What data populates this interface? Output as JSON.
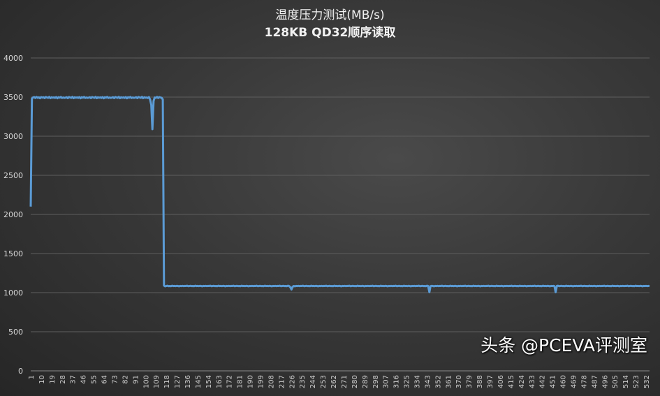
{
  "chart_data": {
    "type": "line",
    "title": "温度压力测试(MB/s)",
    "subtitle": "128KB QD32顺序读取",
    "xlabel": "",
    "ylabel": "",
    "ylim": [
      0,
      4000
    ],
    "yticks": [
      0,
      500,
      1000,
      1500,
      2000,
      2500,
      3000,
      3500,
      4000
    ],
    "xtick_start": 1,
    "xtick_step": 9,
    "grid": true,
    "color": "#5b9bd5",
    "values": [
      2100,
      3480,
      3495,
      3500,
      3488,
      3502,
      3490,
      3497,
      3485,
      3500,
      3493,
      3498,
      3487,
      3501,
      3495,
      3490,
      3503,
      3486,
      3497,
      3492,
      3496,
      3489,
      3500,
      3485,
      3498,
      3492,
      3502,
      3488,
      3495,
      3490,
      3493,
      3498,
      3487,
      3501,
      3495,
      3490,
      3503,
      3486,
      3497,
      3492,
      3496,
      3489,
      3500,
      3485,
      3498,
      3492,
      3502,
      3488,
      3495,
      3490,
      3493,
      3498,
      3487,
      3501,
      3495,
      3490,
      3503,
      3486,
      3497,
      3492,
      3496,
      3489,
      3500,
      3485,
      3498,
      3492,
      3502,
      3488,
      3495,
      3490,
      3493,
      3498,
      3487,
      3501,
      3495,
      3490,
      3503,
      3486,
      3497,
      3492,
      3496,
      3489,
      3500,
      3485,
      3498,
      3492,
      3502,
      3488,
      3495,
      3490,
      3493,
      3498,
      3487,
      3501,
      3495,
      3490,
      3503,
      3486,
      3497,
      3492,
      3495,
      3488,
      3500,
      3470,
      3400,
      3090,
      3450,
      3495,
      3490,
      3502,
      3488,
      3500,
      3495,
      3490,
      3470,
      1090,
      1080,
      1085,
      1088,
      1082,
      1085,
      1082,
      1088,
      1084,
      1086,
      1083,
      1087,
      1085,
      1081,
      1086,
      1084,
      1087,
      1083,
      1086,
      1085,
      1088,
      1082,
      1085,
      1087,
      1084,
      1085,
      1082,
      1088,
      1084,
      1086,
      1083,
      1087,
      1085,
      1081,
      1086,
      1084,
      1087,
      1083,
      1086,
      1085,
      1088,
      1082,
      1085,
      1087,
      1084,
      1085,
      1082,
      1088,
      1084,
      1086,
      1083,
      1087,
      1085,
      1081,
      1086,
      1084,
      1087,
      1083,
      1086,
      1085,
      1088,
      1082,
      1085,
      1087,
      1084,
      1085,
      1082,
      1088,
      1084,
      1086,
      1083,
      1087,
      1085,
      1081,
      1086,
      1084,
      1087,
      1083,
      1086,
      1085,
      1088,
      1082,
      1085,
      1087,
      1084,
      1085,
      1082,
      1088,
      1084,
      1086,
      1083,
      1087,
      1085,
      1081,
      1086,
      1084,
      1087,
      1083,
      1086,
      1085,
      1088,
      1082,
      1085,
      1087,
      1084,
      1085,
      1082,
      1088,
      1084,
      1070,
      1040,
      1075,
      1085,
      1081,
      1086,
      1084,
      1087,
      1083,
      1086,
      1085,
      1088,
      1082,
      1085,
      1087,
      1084,
      1085,
      1082,
      1088,
      1084,
      1086,
      1083,
      1087,
      1085,
      1081,
      1086,
      1084,
      1087,
      1083,
      1086,
      1085,
      1088,
      1082,
      1085,
      1087,
      1084,
      1085,
      1082,
      1088,
      1084,
      1086,
      1083,
      1087,
      1085,
      1081,
      1086,
      1084,
      1087,
      1083,
      1086,
      1085,
      1088,
      1082,
      1085,
      1087,
      1084,
      1085,
      1082,
      1088,
      1084,
      1086,
      1083,
      1087,
      1085,
      1081,
      1086,
      1084,
      1087,
      1083,
      1086,
      1085,
      1088,
      1082,
      1085,
      1087,
      1084,
      1085,
      1082,
      1088,
      1084,
      1086,
      1083,
      1087,
      1085,
      1081,
      1086,
      1084,
      1087,
      1083,
      1086,
      1085,
      1088,
      1082,
      1085,
      1087,
      1084,
      1085,
      1082,
      1088,
      1084,
      1086,
      1083,
      1087,
      1085,
      1081,
      1086,
      1084,
      1087,
      1083,
      1086,
      1085,
      1088,
      1082,
      1085,
      1087,
      1084,
      1085,
      1082,
      1088,
      1084,
      1005,
      1083,
      1087,
      1085,
      1081,
      1086,
      1084,
      1087,
      1083,
      1086,
      1085,
      1088,
      1082,
      1085,
      1087,
      1084,
      1085,
      1082,
      1088,
      1084,
      1086,
      1083,
      1087,
      1085,
      1081,
      1086,
      1084,
      1087,
      1083,
      1086,
      1085,
      1088,
      1082,
      1085,
      1087,
      1084,
      1085,
      1082,
      1088,
      1084,
      1086,
      1083,
      1087,
      1085,
      1081,
      1086,
      1084,
      1087,
      1083,
      1086,
      1085,
      1088,
      1082,
      1085,
      1087,
      1084,
      1085,
      1082,
      1088,
      1084,
      1086,
      1083,
      1087,
      1085,
      1081,
      1086,
      1084,
      1087,
      1083,
      1086,
      1085,
      1088,
      1082,
      1085,
      1087,
      1084,
      1085,
      1082,
      1088,
      1084,
      1086,
      1083,
      1087,
      1085,
      1081,
      1086,
      1084,
      1087,
      1083,
      1086,
      1085,
      1088,
      1082,
      1085,
      1087,
      1084,
      1085,
      1082,
      1088,
      1084,
      1086,
      1083,
      1087,
      1085,
      1081,
      1086,
      1084,
      1087,
      1083,
      1005,
      1085,
      1088,
      1082,
      1085,
      1087,
      1084,
      1085,
      1082,
      1088,
      1084,
      1086,
      1083,
      1087,
      1085,
      1081,
      1086,
      1084,
      1087,
      1083,
      1086,
      1085,
      1088,
      1082,
      1085,
      1087,
      1084,
      1085,
      1082,
      1088,
      1084,
      1086,
      1083,
      1087,
      1085,
      1081,
      1086,
      1084,
      1087,
      1083,
      1086,
      1085,
      1088,
      1082,
      1085,
      1087,
      1084,
      1085,
      1082,
      1088,
      1084,
      1086,
      1083,
      1087,
      1085,
      1081,
      1086,
      1084,
      1087,
      1083,
      1086,
      1085,
      1088,
      1082,
      1085,
      1087,
      1084,
      1085,
      1082,
      1088,
      1084,
      1086,
      1083,
      1087,
      1085,
      1081,
      1086,
      1084,
      1087,
      1083,
      1086,
      1085
    ]
  },
  "watermark": "头条 @PCEVA评测室"
}
